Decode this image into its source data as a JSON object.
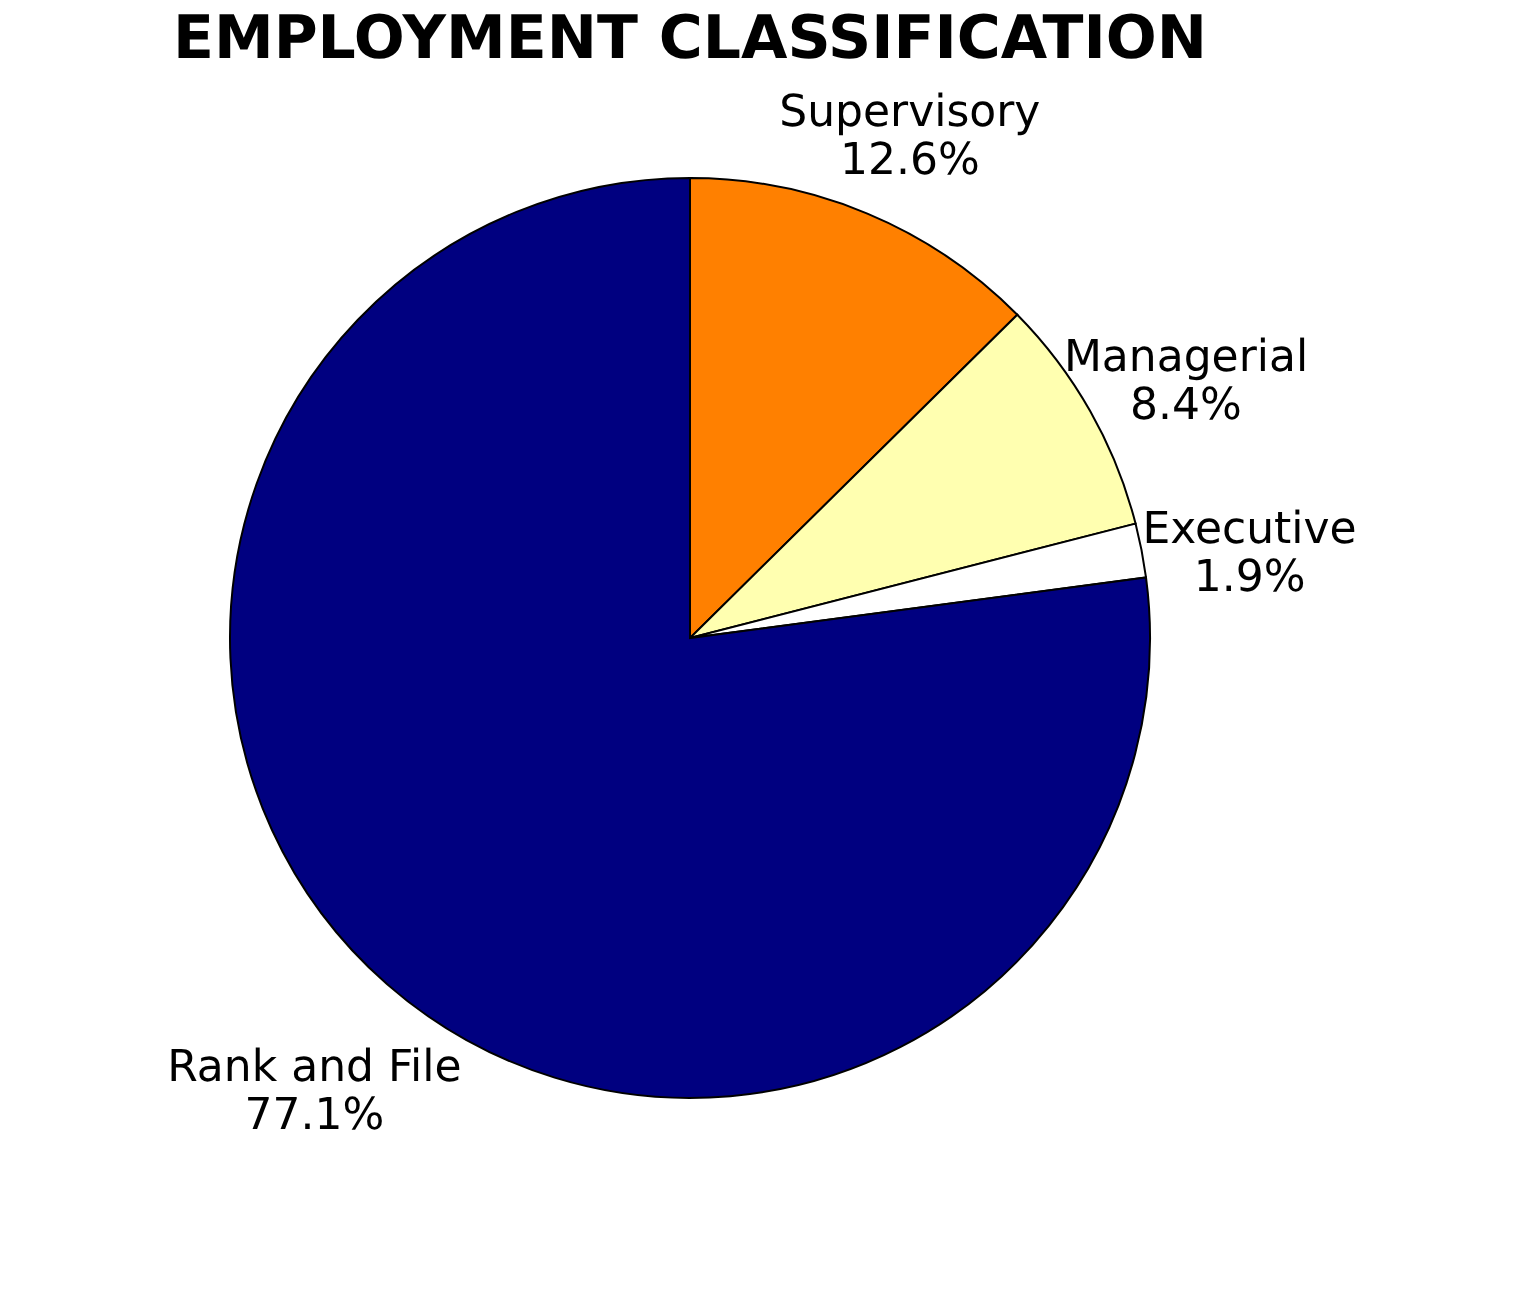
{
  "chart_data": {
    "type": "pie",
    "title": "EMPLOYMENT CLASSIFICATION",
    "categories": [
      "Supervisory",
      "Managerial",
      "Executive",
      "Rank and File"
    ],
    "values": [
      12.6,
      8.4,
      1.9,
      77.1
    ],
    "value_labels": [
      "12.6%",
      "8.4%",
      "1.9%",
      "77.1%"
    ],
    "colors": [
      "#ff8000",
      "#ffffb0",
      "#ffffff",
      "#000080"
    ],
    "legend": false
  }
}
